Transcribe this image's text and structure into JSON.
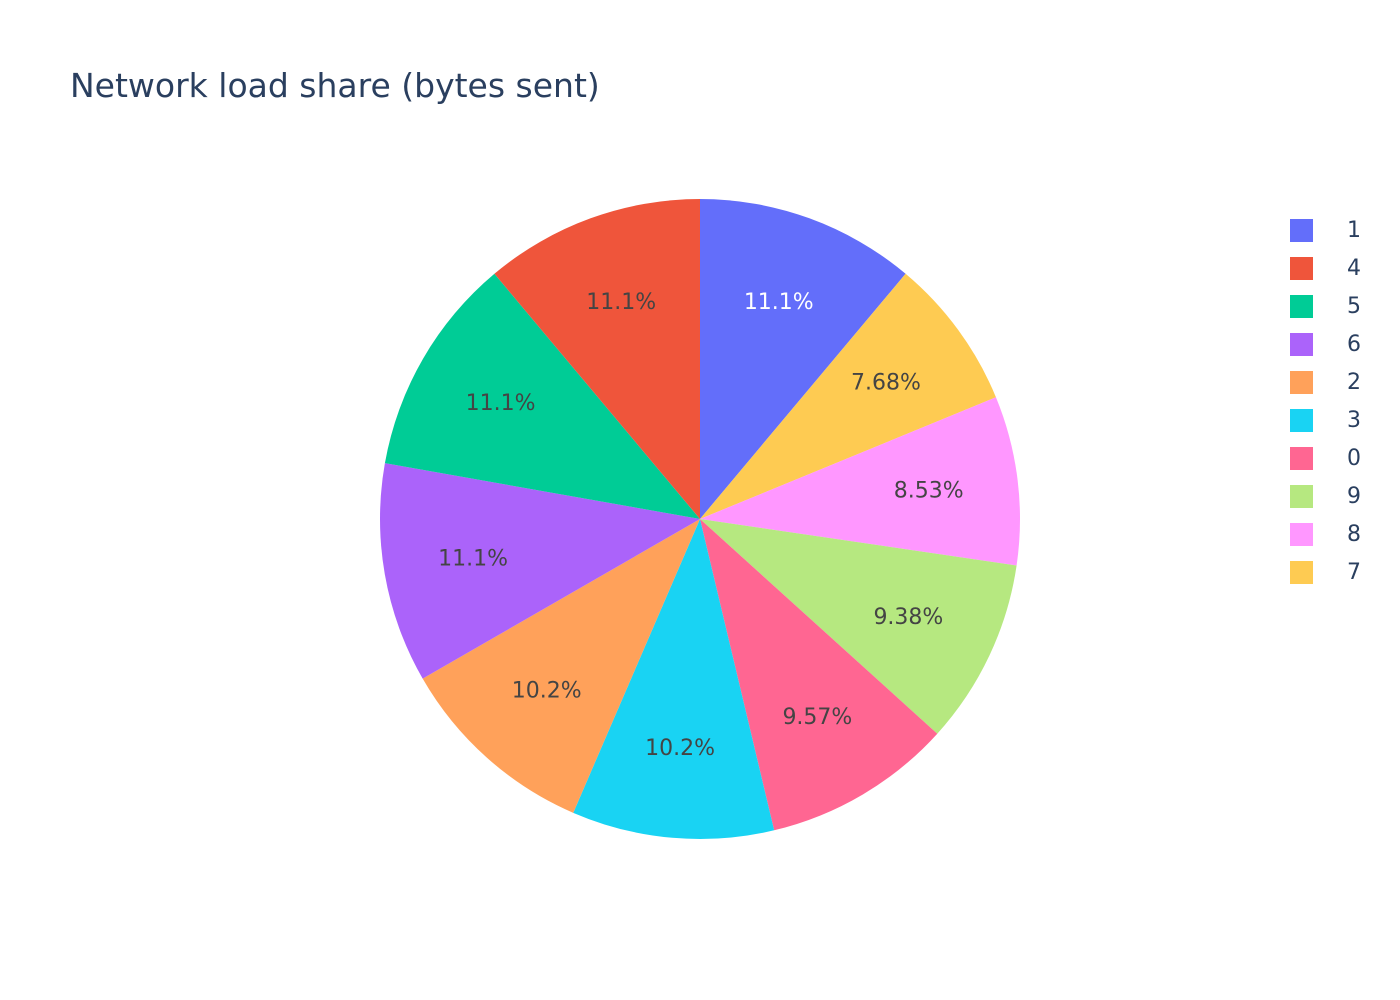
{
  "chart_data": {
    "type": "pie",
    "title": "Network load share (bytes sent)",
    "slices": [
      {
        "label": "1",
        "percent": 11.1,
        "text": "11.1%",
        "color": "#636efa",
        "text_color": "#ffffff"
      },
      {
        "label": "7",
        "percent": 7.68,
        "text": "7.68%",
        "color": "#fecb52",
        "text_color": "#444444"
      },
      {
        "label": "8",
        "percent": 8.53,
        "text": "8.53%",
        "color": "#ff97ff",
        "text_color": "#444444"
      },
      {
        "label": "9",
        "percent": 9.38,
        "text": "9.38%",
        "color": "#b6e880",
        "text_color": "#444444"
      },
      {
        "label": "0",
        "percent": 9.57,
        "text": "9.57%",
        "color": "#ff6692",
        "text_color": "#444444"
      },
      {
        "label": "3",
        "percent": 10.2,
        "text": "10.2%",
        "color": "#19d3f3",
        "text_color": "#444444"
      },
      {
        "label": "2",
        "percent": 10.2,
        "text": "10.2%",
        "color": "#ffa15a",
        "text_color": "#444444"
      },
      {
        "label": "6",
        "percent": 11.1,
        "text": "11.1%",
        "color": "#ab63fa",
        "text_color": "#444444"
      },
      {
        "label": "5",
        "percent": 11.1,
        "text": "11.1%",
        "color": "#00cc96",
        "text_color": "#444444"
      },
      {
        "label": "4",
        "percent": 11.1,
        "text": "11.1%",
        "color": "#ef553b",
        "text_color": "#444444"
      }
    ],
    "direction": "clockwise",
    "legend": {
      "placement": "right",
      "items": [
        {
          "label": "1",
          "color": "#636efa"
        },
        {
          "label": "4",
          "color": "#ef553b"
        },
        {
          "label": "5",
          "color": "#00cc96"
        },
        {
          "label": "6",
          "color": "#ab63fa"
        },
        {
          "label": "2",
          "color": "#ffa15a"
        },
        {
          "label": "3",
          "color": "#19d3f3"
        },
        {
          "label": "0",
          "color": "#ff6692"
        },
        {
          "label": "9",
          "color": "#b6e880"
        },
        {
          "label": "8",
          "color": "#ff97ff"
        },
        {
          "label": "7",
          "color": "#fecb52"
        }
      ]
    }
  }
}
